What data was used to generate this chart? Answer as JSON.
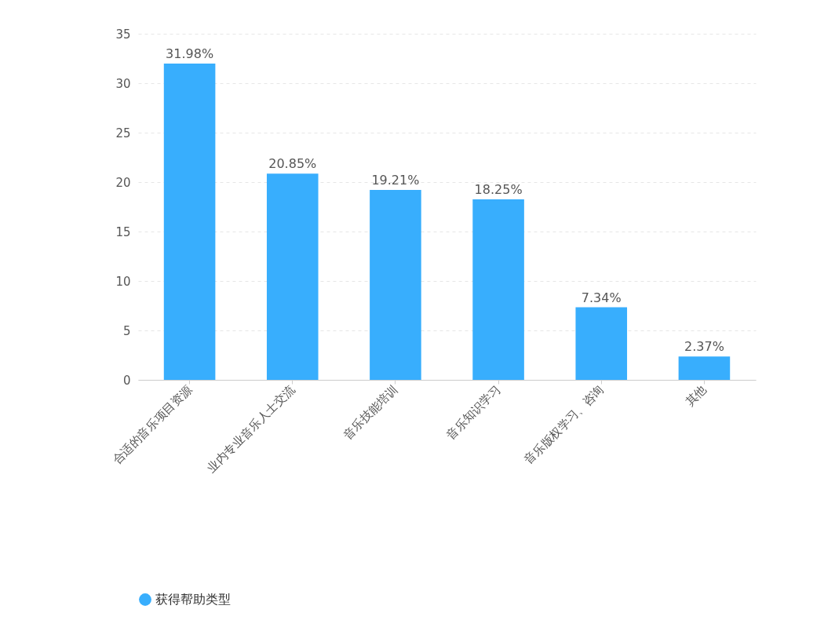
{
  "chart_data": {
    "type": "bar",
    "categories": [
      "合适的音乐项目资源",
      "业内专业音乐人士交流",
      "音乐技能培训",
      "音乐知识学习",
      "音乐版权学习、咨询",
      "其他"
    ],
    "series": [
      {
        "name": "获得帮助类型",
        "color": "#38aefd",
        "values": [
          31.98,
          20.85,
          19.21,
          18.25,
          7.34,
          2.37
        ],
        "value_labels": [
          "31.98%",
          "20.85%",
          "19.21%",
          "18.25%",
          "7.34%",
          "2.37%"
        ]
      }
    ],
    "ylim": [
      0,
      35
    ],
    "yticks": [
      0,
      5,
      10,
      15,
      20,
      25,
      30,
      35
    ],
    "grid": "y",
    "legend": "bottom"
  }
}
